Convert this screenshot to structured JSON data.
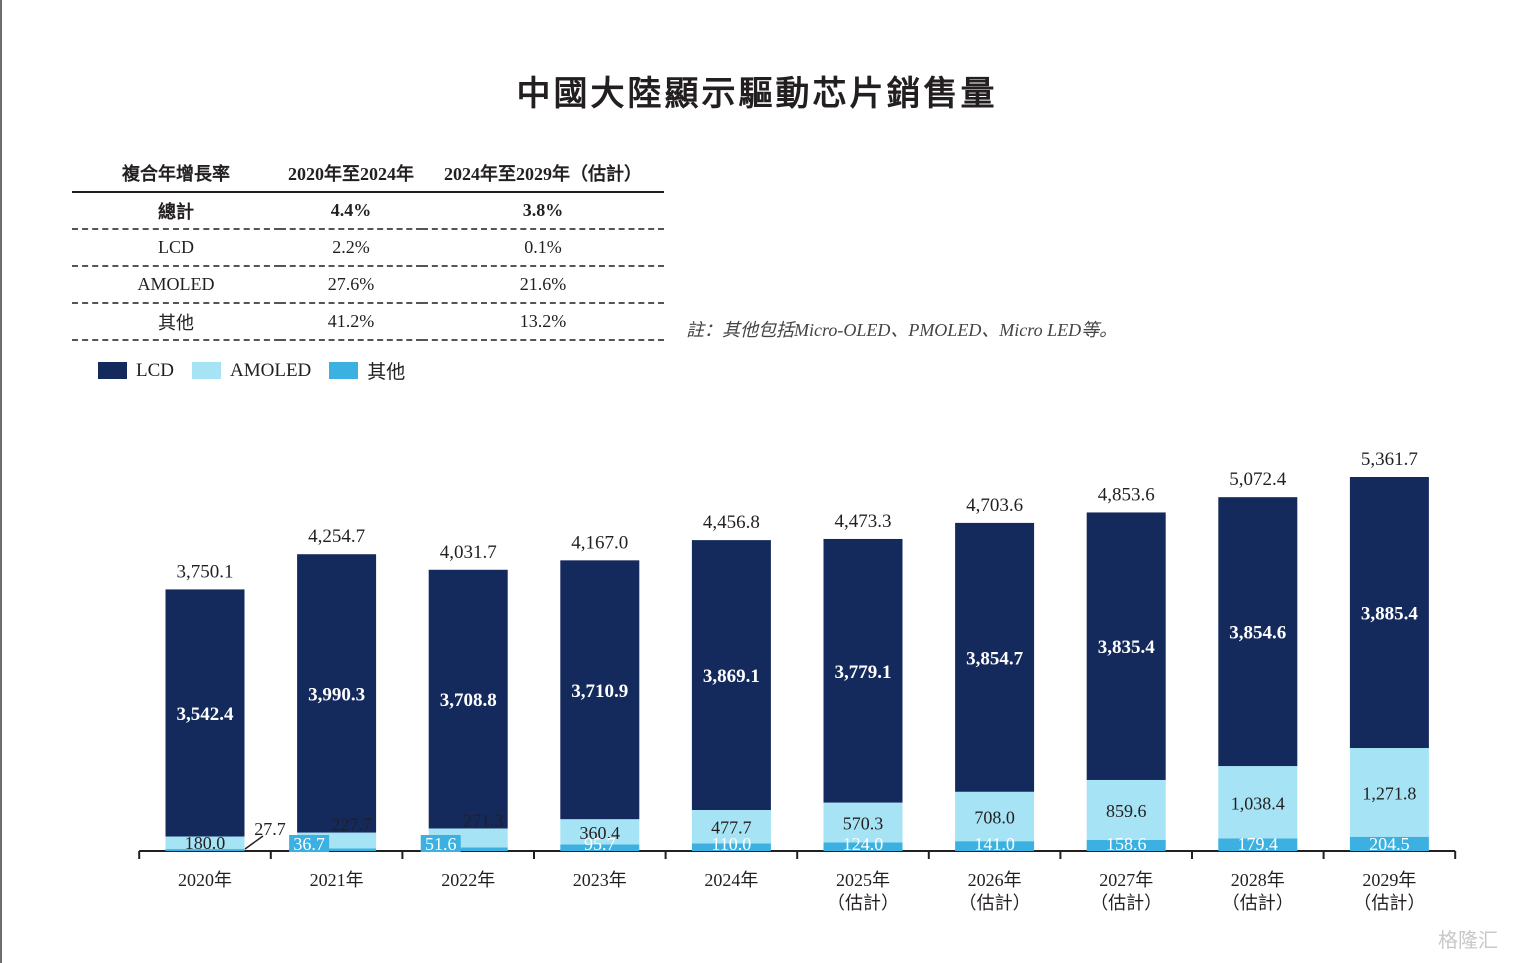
{
  "title": "中國大陸顯示驅動芯片銷售量",
  "cagr_table": {
    "headers": [
      "複合年增長率",
      "2020年至2024年",
      "2024年至2029年（估計）"
    ],
    "rows": [
      {
        "label": "總計",
        "v1": "4.4%",
        "v2": "3.8%"
      },
      {
        "label": "LCD",
        "v1": "2.2%",
        "v2": "0.1%"
      },
      {
        "label": "AMOLED",
        "v1": "27.6%",
        "v2": "21.6%"
      },
      {
        "label": "其他",
        "v1": "41.2%",
        "v2": "13.2%"
      }
    ]
  },
  "note": "註：其他包括Micro-OLED、PMOLED、Micro LED等。",
  "legend": [
    {
      "name": "LCD",
      "color": "#152a5c"
    },
    {
      "name": "AMOLED",
      "color": "#a6e3f4"
    },
    {
      "name": "其他",
      "color": "#3cb1e1"
    }
  ],
  "watermark": "格隆汇",
  "chart_data": {
    "type": "bar",
    "stacked": true,
    "categories": [
      "2020年",
      "2021年",
      "2022年",
      "2023年",
      "2024年",
      "2025年\n(估計)",
      "2026年\n(估計)",
      "2027年\n(估計)",
      "2028年\n(估計)",
      "2029年\n(估計)"
    ],
    "category_lines": [
      [
        "2020年"
      ],
      [
        "2021年"
      ],
      [
        "2022年"
      ],
      [
        "2023年"
      ],
      [
        "2024年"
      ],
      [
        "2025年",
        "（估計）"
      ],
      [
        "2026年",
        "（估計）"
      ],
      [
        "2027年",
        "（估計）"
      ],
      [
        "2028年",
        "（估計）"
      ],
      [
        "2029年",
        "（估計）"
      ]
    ],
    "series": [
      {
        "name": "其他",
        "color": "#3cb1e1",
        "values": [
          27.7,
          36.7,
          51.6,
          95.7,
          110.0,
          124.0,
          141.0,
          158.6,
          179.4,
          204.5
        ],
        "labels": [
          "27.7",
          "36.7",
          "51.6",
          "95.7",
          "110.0",
          "124.0",
          "141.0",
          "158.6",
          "179.4",
          "204.5"
        ]
      },
      {
        "name": "AMOLED",
        "color": "#a6e3f4",
        "values": [
          180.0,
          227.7,
          271.3,
          360.4,
          477.7,
          570.3,
          708.0,
          859.6,
          1038.4,
          1271.8
        ],
        "labels": [
          "180.0",
          "227.7",
          "271.3",
          "360.4",
          "477.7",
          "570.3",
          "708.0",
          "859.6",
          "1,038.4",
          "1,271.8"
        ]
      },
      {
        "name": "LCD",
        "color": "#152a5c",
        "values": [
          3542.4,
          3990.3,
          3708.8,
          3710.9,
          3869.1,
          3779.1,
          3854.7,
          3835.4,
          3854.6,
          3885.4
        ],
        "labels": [
          "3,542.4",
          "3,990.3",
          "3,708.8",
          "3,710.9",
          "3,869.1",
          "3,779.1",
          "3,854.7",
          "3,835.4",
          "3,854.6",
          "3,885.4"
        ]
      }
    ],
    "totals": [
      3750.1,
      4254.7,
      4031.7,
      4167.0,
      4456.8,
      4473.3,
      4703.6,
      4853.6,
      5072.4,
      5361.7
    ],
    "total_labels": [
      "3,750.1",
      "4,254.7",
      "4,031.7",
      "4,167.0",
      "4,456.8",
      "4,473.3",
      "4,703.6",
      "4,853.6",
      "5,072.4",
      "5,361.7"
    ],
    "ylim": [
      0,
      5361.7
    ],
    "xlabel": "",
    "ylabel": "",
    "legend_position": "top-left"
  }
}
